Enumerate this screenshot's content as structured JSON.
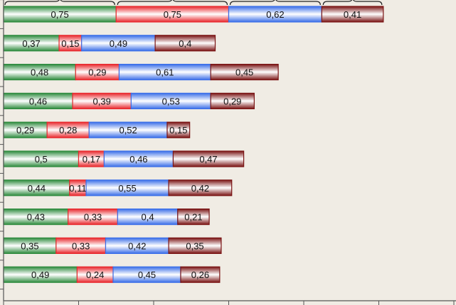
{
  "chart_data": {
    "type": "bar",
    "orientation": "horizontal",
    "stacked": true,
    "title": "",
    "xlabel": "",
    "ylabel": "",
    "xlim": [
      0,
      3
    ],
    "grid": false,
    "legend": "none",
    "series": [
      {
        "color": "#2e8b3e",
        "values": [
          0.75,
          0.37,
          0.48,
          0.46,
          0.29,
          0.5,
          0.44,
          0.43,
          0.35,
          0.49
        ]
      },
      {
        "color": "#e8282d",
        "values": [
          0.75,
          0.15,
          0.29,
          0.39,
          0.28,
          0.17,
          0.11,
          0.33,
          0.33,
          0.24
        ]
      },
      {
        "color": "#3a6ee8",
        "values": [
          0.62,
          0.49,
          0.61,
          0.53,
          0.52,
          0.46,
          0.55,
          0.4,
          0.42,
          0.45
        ]
      },
      {
        "color": "#7a1414",
        "values": [
          0.41,
          0.4,
          0.45,
          0.29,
          0.15,
          0.47,
          0.42,
          0.21,
          0.35,
          0.26
        ]
      }
    ],
    "labels": [
      [
        "0,75",
        "0,75",
        "0,62",
        "0,41"
      ],
      [
        "0,37",
        "0,15",
        "0,49",
        "0,4"
      ],
      [
        "0,48",
        "0,29",
        "0,61",
        "0,45"
      ],
      [
        "0,46",
        "0,39",
        "0,53",
        "0,29"
      ],
      [
        "0,29",
        "0,28",
        "0,52",
        "0,15"
      ],
      [
        "0,5",
        "0,17",
        "0,46",
        "0,47"
      ],
      [
        "0,44",
        "0,11",
        "0,55",
        "0,42"
      ],
      [
        "0,43",
        "0,33",
        "0,4",
        "0,21"
      ],
      [
        "0,35",
        "0,33",
        "0,42",
        "0,35"
      ],
      [
        "0,49",
        "0,24",
        "0,45",
        "0,26"
      ]
    ]
  }
}
